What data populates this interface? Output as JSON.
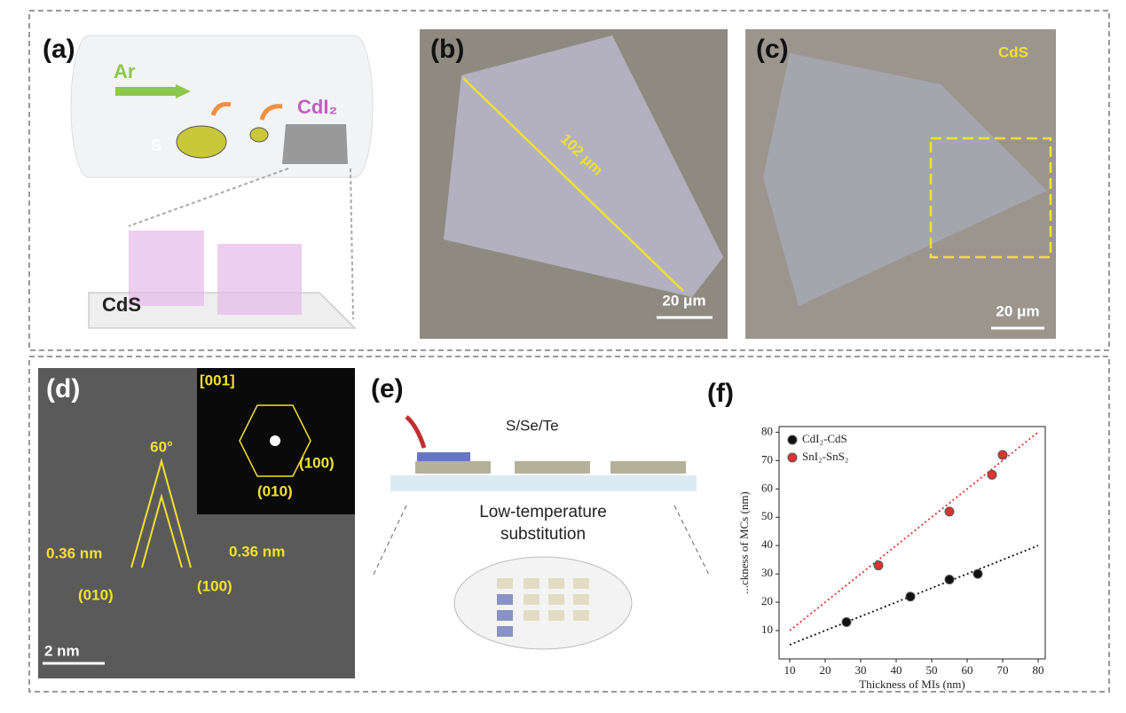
{
  "panels": {
    "a": {
      "label": "(a)",
      "gas": "Ar",
      "source": "S",
      "precursor": "CdI₂",
      "product": "CdS"
    },
    "b": {
      "label": "(b)",
      "length": "102 μm",
      "scale": "20 μm"
    },
    "c": {
      "label": "(c)",
      "material": "CdS",
      "scale": "20 μm"
    },
    "d": {
      "label": "(d)",
      "zone_axis": "[001]",
      "spot1": "(100)",
      "spot2": "(010)",
      "angle": "60°",
      "spacing1": "0.36 nm",
      "spacing2": "0.36 nm",
      "plane1": "(010)",
      "plane2": "(100)",
      "scale": "2 nm"
    },
    "e": {
      "label": "(e)",
      "elements": "S/Se/Te",
      "process": [
        "Low-temperature",
        "substitution"
      ]
    },
    "f": {
      "label": "(f)"
    }
  },
  "chart_data": {
    "type": "scatter",
    "xlabel": "Thickness of MIs (nm)",
    "ylabel": "...ckness of MCs (nm)",
    "xlim": [
      7,
      82
    ],
    "ylim": [
      0,
      82
    ],
    "xticks": [
      10,
      20,
      30,
      40,
      50,
      60,
      70,
      80
    ],
    "yticks": [
      10,
      20,
      30,
      40,
      50,
      60,
      70,
      80
    ],
    "legend": "upper-left",
    "series": [
      {
        "name": "CdI₂-CdS",
        "color": "#111111",
        "x": [
          26,
          44,
          55,
          63
        ],
        "values": [
          13,
          22,
          28,
          30
        ],
        "fit_x": [
          10,
          80
        ],
        "fit_values": [
          5,
          40
        ]
      },
      {
        "name": "SnI₂-SnS₂",
        "color": "#e03030",
        "x": [
          35,
          55,
          67,
          70
        ],
        "values": [
          33,
          52,
          65,
          72
        ],
        "fit_x": [
          10,
          80
        ],
        "fit_values": [
          10,
          80
        ]
      }
    ]
  }
}
